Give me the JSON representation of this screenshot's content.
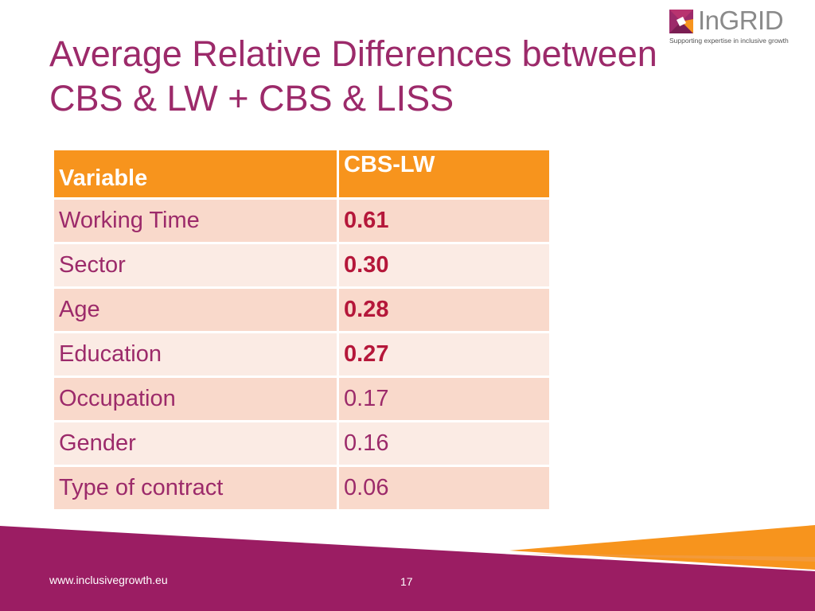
{
  "slide": {
    "title_line1": "Average Relative Differences between",
    "title_line2": "CBS & LW + CBS & LISS"
  },
  "logo": {
    "name": "InGRID",
    "tagline": "Supporting expertise in inclusive growth"
  },
  "table": {
    "headers": [
      "Variable",
      "CBS-LW"
    ],
    "rows": [
      {
        "variable": "Working Time",
        "value": "0.61",
        "emphasis": true
      },
      {
        "variable": "Sector",
        "value": "0.30",
        "emphasis": true
      },
      {
        "variable": "Age",
        "value": "0.28",
        "emphasis": true
      },
      {
        "variable": "Education",
        "value": "0.27",
        "emphasis": true
      },
      {
        "variable": "Occupation",
        "value": "0.17",
        "emphasis": false
      },
      {
        "variable": "Gender",
        "value": "0.16",
        "emphasis": false
      },
      {
        "variable": "Type of contract",
        "value": "0.06",
        "emphasis": false
      }
    ]
  },
  "footer": {
    "url": "www.inclusivegrowth.eu",
    "page_number": "17"
  },
  "colors": {
    "title": "#9c2a6a",
    "header_orange": "#f7941d",
    "row_odd": "#f9d9cb",
    "row_even": "#fbebe4",
    "emphasis_value": "#b5173a",
    "footer_purple": "#9b1d63",
    "footer_orange": "#f7941d"
  }
}
